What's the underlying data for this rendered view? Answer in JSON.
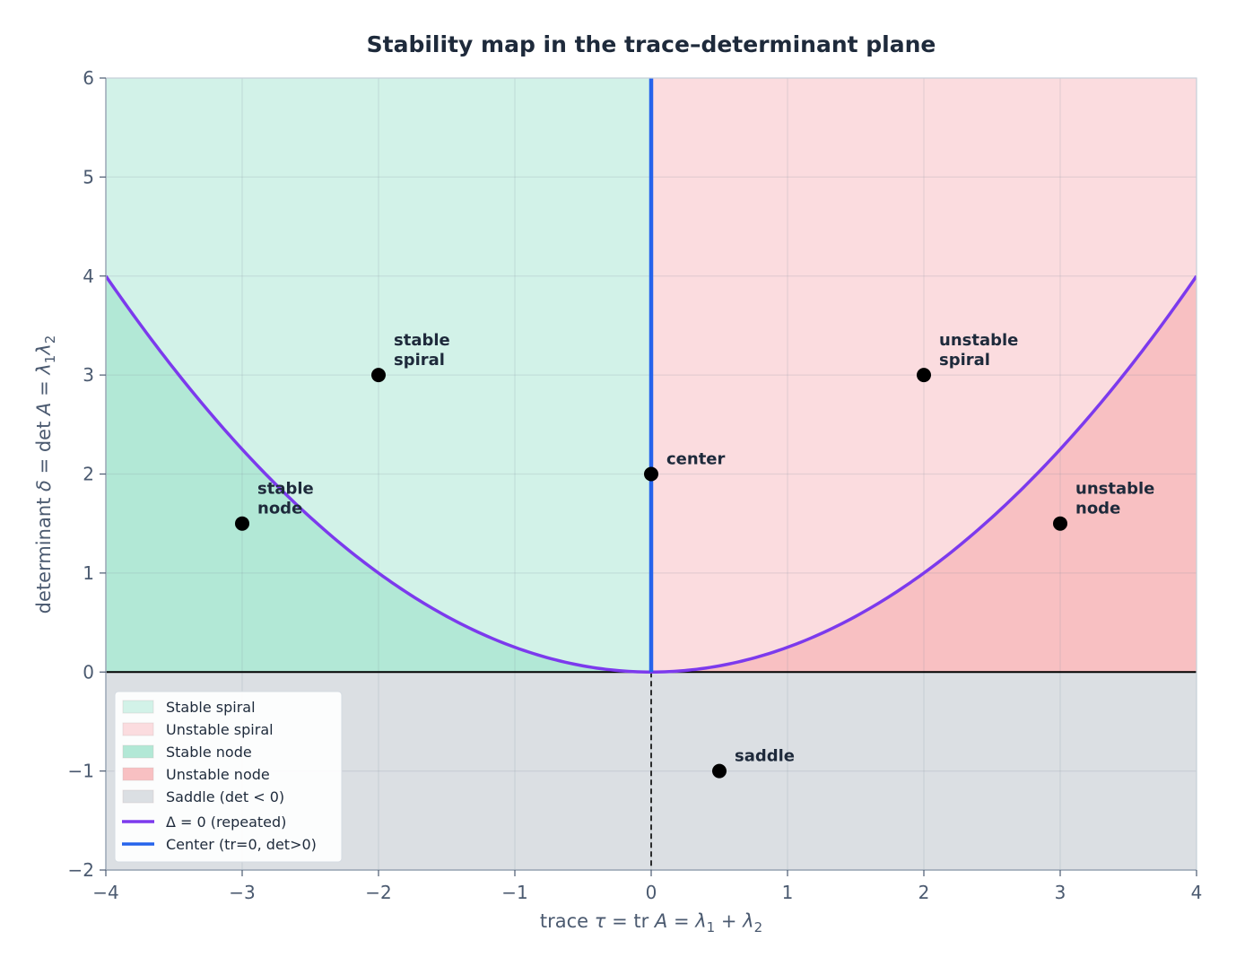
{
  "chart_data": {
    "type": "area",
    "title": "Stability map in the trace–determinant plane",
    "xlabel_parts": [
      "trace ",
      "τ",
      " = tr ",
      "A",
      " = ",
      "λ",
      "1",
      " + ",
      "λ",
      "2"
    ],
    "ylabel_parts": [
      "determinant ",
      "δ",
      " = det ",
      "A",
      " = ",
      "λ",
      "1",
      "λ",
      "2"
    ],
    "xlim": [
      -4,
      4
    ],
    "ylim": [
      -2,
      6
    ],
    "x_ticks": [
      -4,
      -3,
      -2,
      -1,
      0,
      1,
      2,
      3,
      4
    ],
    "y_ticks": [
      -2,
      -1,
      0,
      1,
      2,
      3,
      4,
      5,
      6
    ],
    "grid": true,
    "regions": [
      {
        "name": "Stable spiral",
        "color": "#d2f2e8",
        "where": "trace < 0, det > trace^2/4"
      },
      {
        "name": "Unstable spiral",
        "color": "#fbdcdf",
        "where": "trace > 0, det > trace^2/4"
      },
      {
        "name": "Stable node",
        "color": "#b2e8d6",
        "where": "trace < 0, 0 < det < trace^2/4"
      },
      {
        "name": "Unstable node",
        "color": "#f8c0c2",
        "where": "trace > 0, 0 < det < trace^2/4"
      },
      {
        "name": "Saddle (det < 0)",
        "color": "#dbdfe3",
        "where": "det < 0"
      }
    ],
    "curves": [
      {
        "name": "Δ = 0 (repeated)",
        "color": "#7c3aed",
        "equation": "det = trace^2/4"
      },
      {
        "name": "Center (tr=0, det>0)",
        "color": "#2563eb",
        "equation": "trace = 0, det > 0"
      }
    ],
    "points": [
      {
        "label_lines": [
          "stable",
          "spiral"
        ],
        "x": -2,
        "y": 3
      },
      {
        "label_lines": [
          "stable",
          "node"
        ],
        "x": -3,
        "y": 1.5
      },
      {
        "label_lines": [
          "center"
        ],
        "x": 0,
        "y": 2
      },
      {
        "label_lines": [
          "unstable",
          "spiral"
        ],
        "x": 2,
        "y": 3
      },
      {
        "label_lines": [
          "unstable",
          "node"
        ],
        "x": 3,
        "y": 1.5
      },
      {
        "label_lines": [
          "saddle"
        ],
        "x": 0.5,
        "y": -1
      }
    ],
    "legend": {
      "placement": "lower-left",
      "entries": [
        {
          "label": "Stable spiral",
          "kind": "patch",
          "color": "#d2f2e8"
        },
        {
          "label": "Unstable spiral",
          "kind": "patch",
          "color": "#fbdcdf"
        },
        {
          "label": "Stable node",
          "kind": "patch",
          "color": "#b2e8d6"
        },
        {
          "label": "Unstable node",
          "kind": "patch",
          "color": "#f8c0c2"
        },
        {
          "label": "Saddle (det < 0)",
          "kind": "patch",
          "color": "#dbdfe3"
        },
        {
          "label": "Δ = 0 (repeated)",
          "kind": "line",
          "color": "#7c3aed"
        },
        {
          "label": "Center (tr=0, det>0)",
          "kind": "line",
          "color": "#2563eb"
        }
      ]
    }
  }
}
